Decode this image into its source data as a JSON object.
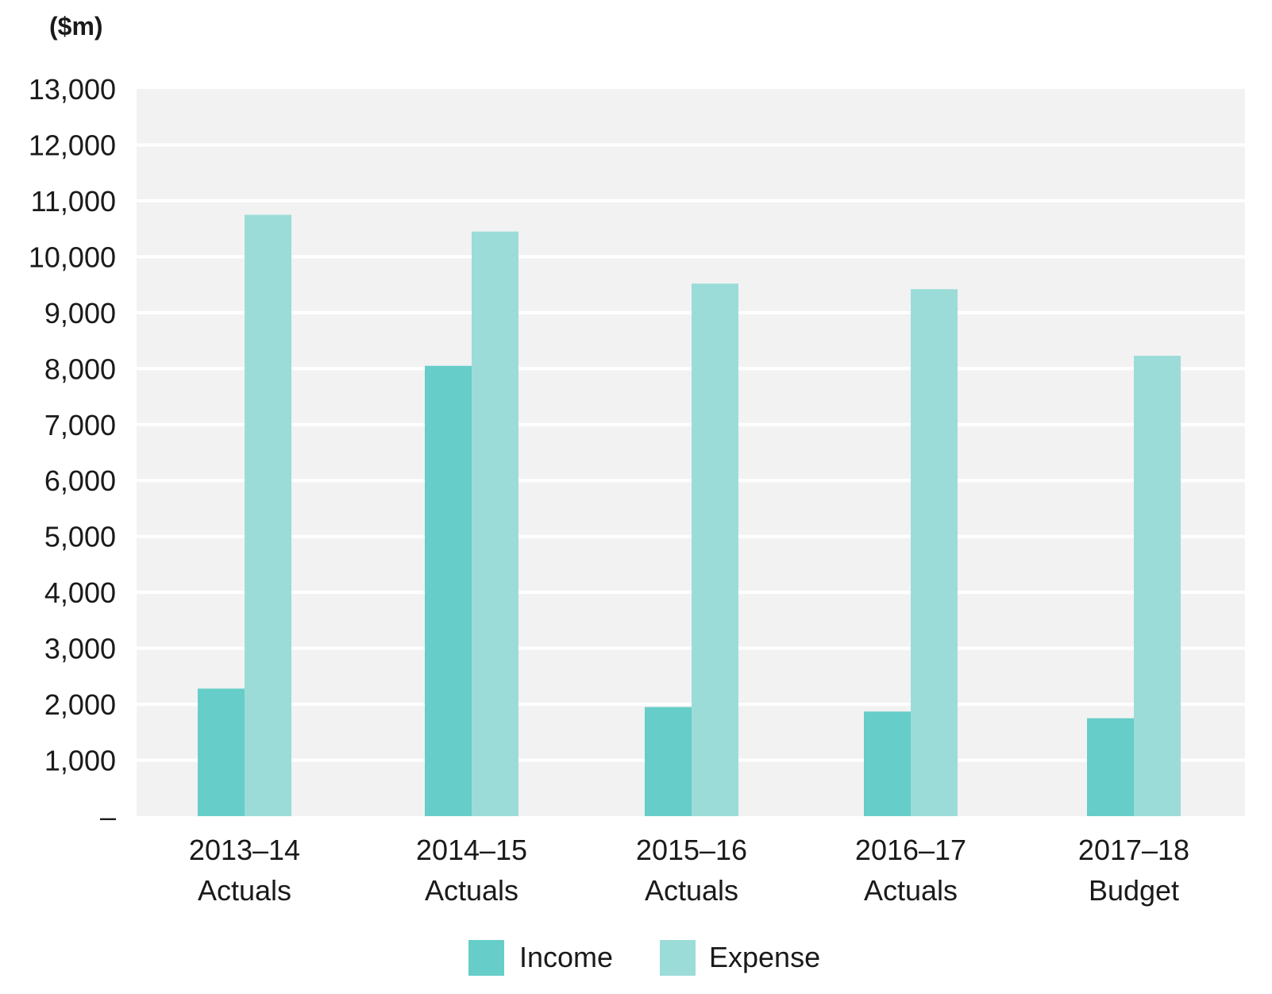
{
  "chart_data": {
    "type": "bar",
    "title": "",
    "unit_label": "($m)",
    "xlabel": "",
    "ylabel": "",
    "ylim": [
      0,
      13000
    ],
    "y_ticks": [
      {
        "value": 0,
        "label": "–"
      },
      {
        "value": 1000,
        "label": "1,000"
      },
      {
        "value": 2000,
        "label": "2,000"
      },
      {
        "value": 3000,
        "label": "3,000"
      },
      {
        "value": 4000,
        "label": "4,000"
      },
      {
        "value": 5000,
        "label": "5,000"
      },
      {
        "value": 6000,
        "label": "6,000"
      },
      {
        "value": 7000,
        "label": "7,000"
      },
      {
        "value": 8000,
        "label": "8,000"
      },
      {
        "value": 9000,
        "label": "9,000"
      },
      {
        "value": 10000,
        "label": "10,000"
      },
      {
        "value": 11000,
        "label": "11,000"
      },
      {
        "value": 12000,
        "label": "12,000"
      },
      {
        "value": 13000,
        "label": "13,000"
      }
    ],
    "categories": [
      [
        "2013–14",
        "Actuals"
      ],
      [
        "2014–15",
        "Actuals"
      ],
      [
        "2015–16",
        "Actuals"
      ],
      [
        "2016–17",
        "Actuals"
      ],
      [
        "2017–18",
        "Budget"
      ]
    ],
    "series": [
      {
        "name": "Income",
        "color": "#66cdc8",
        "values": [
          2280,
          8050,
          1950,
          1870,
          1750
        ]
      },
      {
        "name": "Expense",
        "color": "#9bdcd8",
        "values": [
          10750,
          10450,
          9520,
          9420,
          8230
        ]
      }
    ],
    "grid": true,
    "plot_background": "#f2f2f2",
    "grid_color": "#ffffff",
    "legend_position": "bottom-center"
  }
}
